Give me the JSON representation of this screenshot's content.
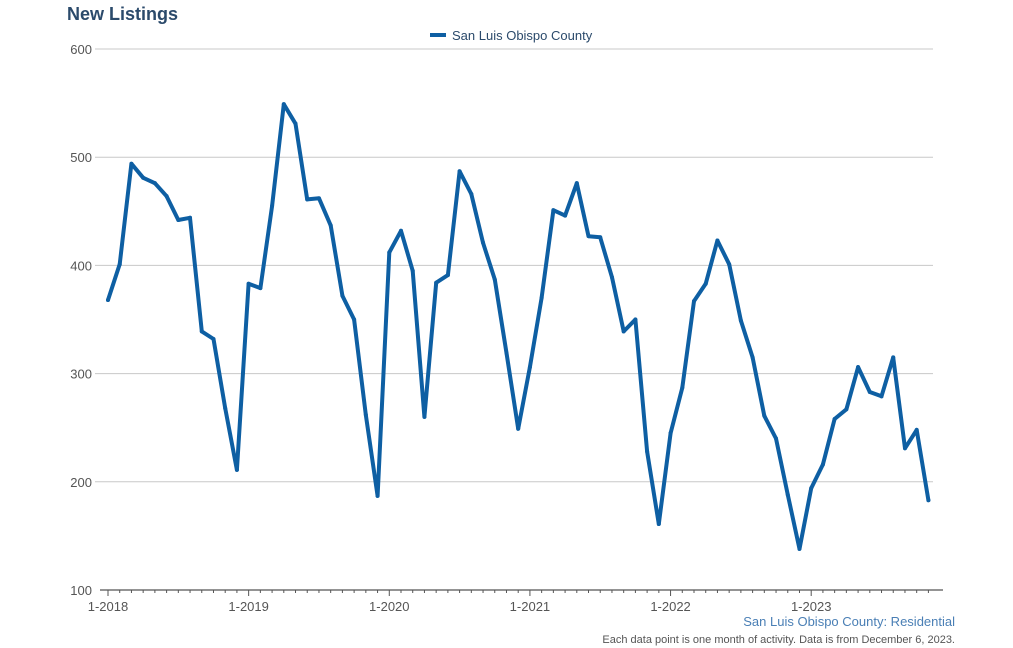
{
  "header": {
    "title": "New Listings"
  },
  "footer": {
    "source": "San Luis Obispo County: Residential",
    "note": "Each data point is one month of activity. Data is from December 6, 2023."
  },
  "colors": {
    "series": "#0e5fa3",
    "title": "#2b4a6b",
    "grid": "#c8c8c8",
    "axis": "#555555"
  },
  "chart_data": {
    "type": "line",
    "title": "New Listings",
    "xlabel": "",
    "ylabel": "",
    "ylim": [
      100,
      600
    ],
    "yticks": [
      100,
      200,
      300,
      400,
      500,
      600
    ],
    "xtick_labels": [
      "1-2018",
      "1-2019",
      "1-2020",
      "1-2021",
      "1-2022",
      "1-2023"
    ],
    "legend_position": "top-center",
    "grid": true,
    "x": [
      "2018-01",
      "2018-02",
      "2018-03",
      "2018-04",
      "2018-05",
      "2018-06",
      "2018-07",
      "2018-08",
      "2018-09",
      "2018-10",
      "2018-11",
      "2018-12",
      "2019-01",
      "2019-02",
      "2019-03",
      "2019-04",
      "2019-05",
      "2019-06",
      "2019-07",
      "2019-08",
      "2019-09",
      "2019-10",
      "2019-11",
      "2019-12",
      "2020-01",
      "2020-02",
      "2020-03",
      "2020-04",
      "2020-05",
      "2020-06",
      "2020-07",
      "2020-08",
      "2020-09",
      "2020-10",
      "2020-11",
      "2020-12",
      "2021-01",
      "2021-02",
      "2021-03",
      "2021-04",
      "2021-05",
      "2021-06",
      "2021-07",
      "2021-08",
      "2021-09",
      "2021-10",
      "2021-11",
      "2021-12",
      "2022-01",
      "2022-02",
      "2022-03",
      "2022-04",
      "2022-05",
      "2022-06",
      "2022-07",
      "2022-08",
      "2022-09",
      "2022-10",
      "2022-11",
      "2022-12",
      "2023-01",
      "2023-02",
      "2023-03",
      "2023-04",
      "2023-05",
      "2023-06",
      "2023-07",
      "2023-08",
      "2023-09",
      "2023-10",
      "2023-11"
    ],
    "series": [
      {
        "name": "San Luis Obispo County",
        "values": [
          368,
          401,
          494,
          481,
          476,
          464,
          442,
          444,
          339,
          332,
          268,
          211,
          383,
          379,
          455,
          549,
          531,
          461,
          462,
          437,
          372,
          350,
          262,
          187,
          412,
          432,
          395,
          260,
          384,
          391,
          487,
          466,
          421,
          387,
          319,
          249,
          306,
          370,
          451,
          446,
          476,
          427,
          426,
          389,
          339,
          350,
          228,
          161,
          245,
          287,
          367,
          383,
          423,
          401,
          349,
          315,
          261,
          240,
          188,
          138,
          194,
          216,
          258,
          267,
          306,
          283,
          279,
          315,
          231,
          248,
          183
        ]
      }
    ]
  }
}
